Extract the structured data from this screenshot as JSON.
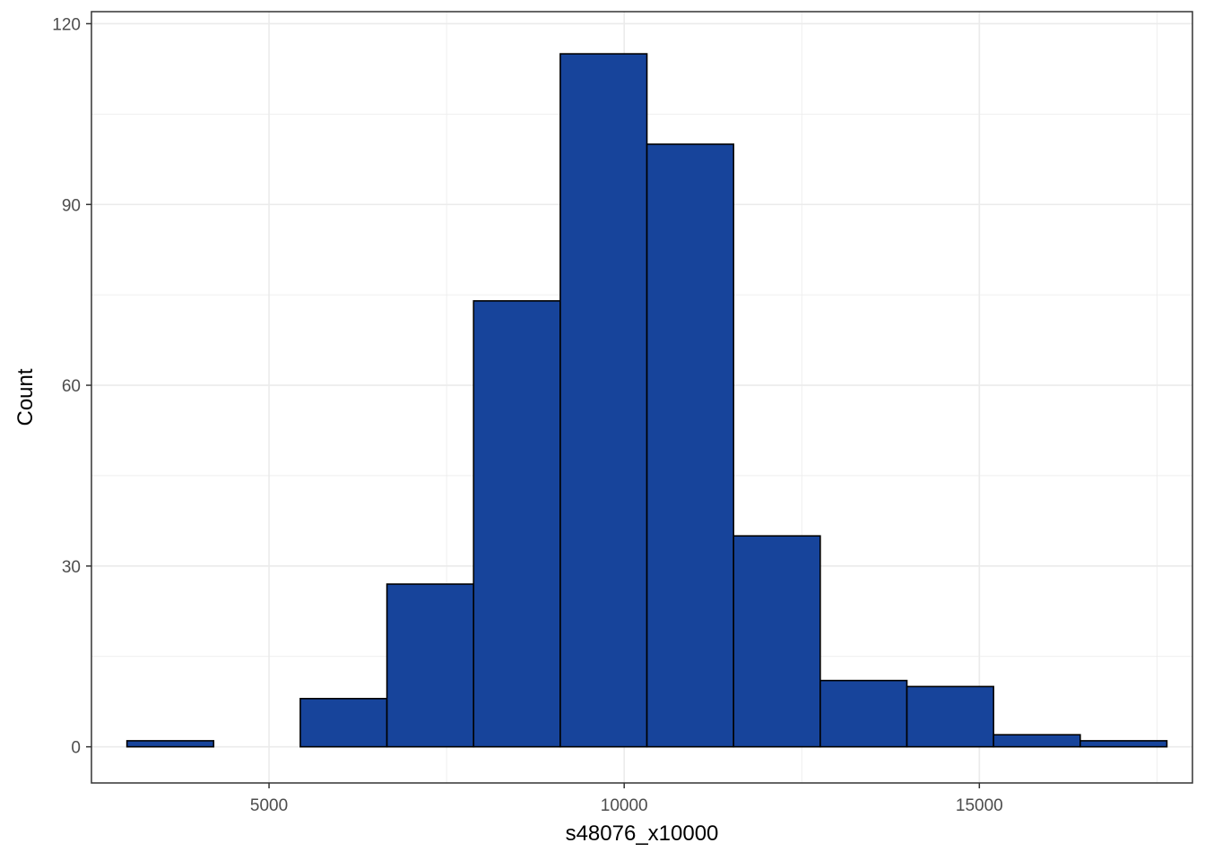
{
  "chart_data": {
    "type": "bar",
    "subtype": "histogram",
    "title": "",
    "xlabel": "s48076_x10000",
    "ylabel": "Count",
    "bins": [
      {
        "x0": 3000,
        "x1": 4220,
        "count": 1
      },
      {
        "x0": 4220,
        "x1": 5440,
        "count": 0
      },
      {
        "x0": 5440,
        "x1": 6660,
        "count": 8
      },
      {
        "x0": 6660,
        "x1": 7880,
        "count": 27
      },
      {
        "x0": 7880,
        "x1": 9100,
        "count": 74
      },
      {
        "x0": 9100,
        "x1": 10320,
        "count": 115
      },
      {
        "x0": 10320,
        "x1": 11540,
        "count": 100
      },
      {
        "x0": 11540,
        "x1": 12760,
        "count": 35
      },
      {
        "x0": 12760,
        "x1": 13980,
        "count": 11
      },
      {
        "x0": 13980,
        "x1": 15200,
        "count": 10
      },
      {
        "x0": 15200,
        "x1": 16420,
        "count": 2
      },
      {
        "x0": 16420,
        "x1": 17640,
        "count": 1
      }
    ],
    "xlim": [
      2500,
      18000
    ],
    "ylim": [
      -6,
      122
    ],
    "x_ticks": [
      5000,
      10000,
      15000
    ],
    "x_minor_ticks": [
      2500,
      7500,
      12500,
      17500
    ],
    "y_ticks": [
      0,
      30,
      60,
      90,
      120
    ],
    "y_minor_ticks": [
      15,
      45,
      75,
      105
    ],
    "grid": true,
    "legend": "none",
    "colors": {
      "bar_fill": "#17449B",
      "bar_stroke": "#000000",
      "grid": "#EBEBEB",
      "panel_border": "#333333"
    }
  }
}
